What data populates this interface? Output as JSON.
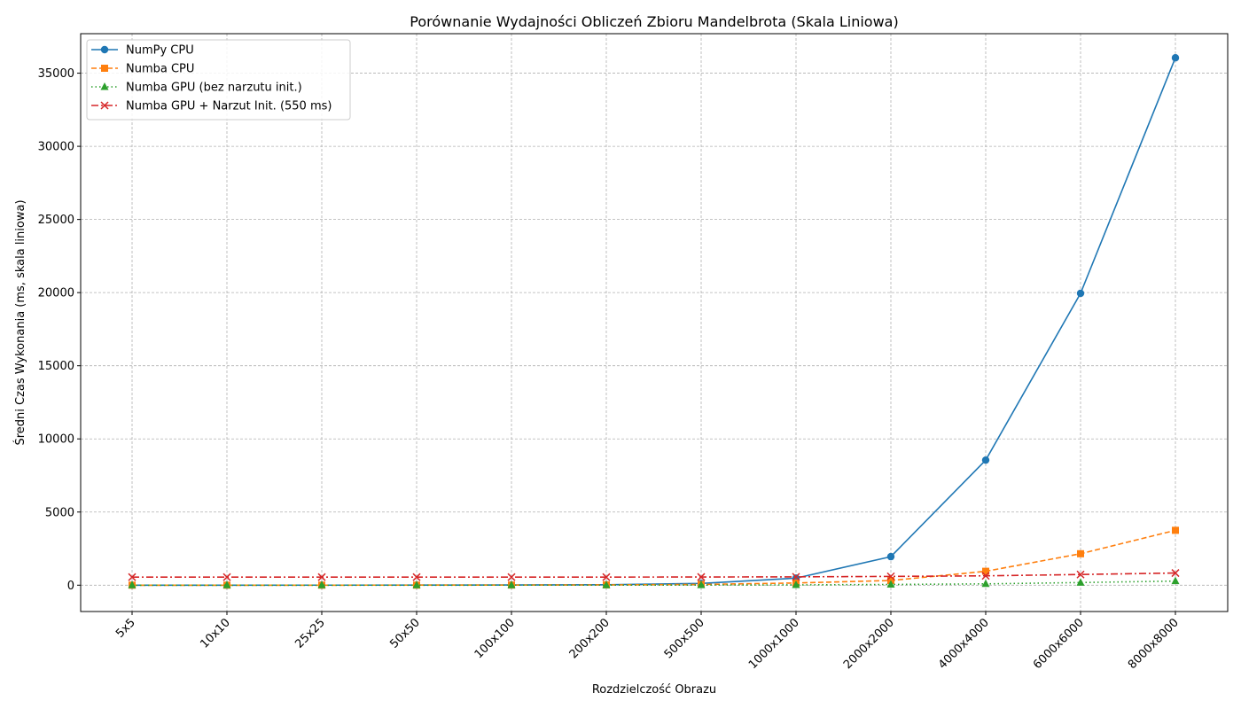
{
  "chart_data": {
    "type": "line",
    "title": "Porównanie Wydajności Obliczeń Zbioru Mandelbrota (Skala Liniowa)",
    "xlabel": "Rozdzielczość Obrazu",
    "ylabel": "Średni Czas Wykonania (ms, skala liniowa)",
    "categories": [
      "5x5",
      "10x10",
      "25x25",
      "50x50",
      "100x100",
      "200x200",
      "500x500",
      "1000x1000",
      "2000x2000",
      "4000x4000",
      "6000x6000",
      "8000x8000"
    ],
    "ylim": [
      -1800,
      37700
    ],
    "yticks": [
      0,
      5000,
      10000,
      15000,
      20000,
      25000,
      30000,
      35000
    ],
    "grid": true,
    "legend_position": "top-left",
    "series": [
      {
        "name": "NumPy CPU",
        "color": "#1f77b4",
        "dash": "",
        "marker": "circle",
        "values": [
          0.5,
          1,
          2,
          5,
          15,
          30,
          120,
          480,
          1950,
          8550,
          19950,
          36050
        ]
      },
      {
        "name": "Numba CPU",
        "color": "#ff7f0e",
        "dash": "6,3",
        "marker": "square",
        "values": [
          0.3,
          0.5,
          1,
          3,
          8,
          20,
          50,
          150,
          320,
          950,
          2150,
          3750
        ]
      },
      {
        "name": "Numba GPU (bez narzutu init.)",
        "color": "#2ca02c",
        "dash": "1.5,3",
        "marker": "triangle",
        "values": [
          0.2,
          0.3,
          0.5,
          1,
          2,
          3,
          8,
          20,
          50,
          90,
          180,
          280
        ]
      },
      {
        "name": "Numba GPU + Narzut Init. (550 ms)",
        "color": "#d62728",
        "dash": "8,3,2,3",
        "marker": "x",
        "values": [
          550,
          550,
          550,
          551,
          552,
          553,
          558,
          570,
          600,
          640,
          730,
          830
        ]
      }
    ]
  }
}
